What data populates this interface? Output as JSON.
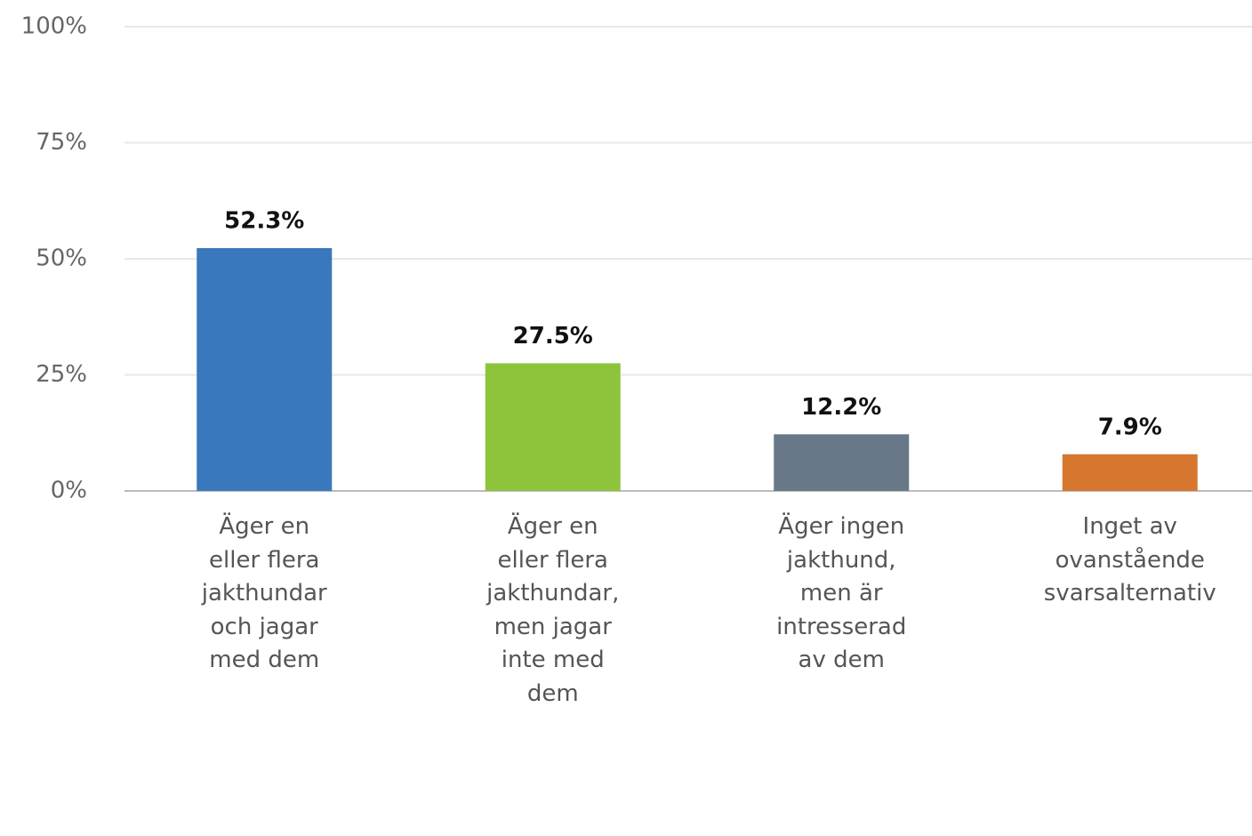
{
  "chart_data": {
    "type": "bar",
    "categories": [
      "Äger en eller flera jakthundar och jagar med dem",
      "Äger en eller flera jakthundar, men jagar inte med dem",
      "Äger ingen jakthund, men är intresserad av dem",
      "Inget av ovanstående svarsalternativ"
    ],
    "values": [
      52.3,
      27.5,
      12.2,
      7.9
    ],
    "value_labels": [
      "52.3%",
      "27.5%",
      "12.2%",
      "7.9%"
    ],
    "colors": [
      "#3a78bd",
      "#8dc43c",
      "#687888",
      "#d7772f"
    ],
    "ylim": [
      0,
      100
    ],
    "yticks": [
      {
        "value": 0,
        "label": "0%"
      },
      {
        "value": 25,
        "label": "25%"
      },
      {
        "value": 50,
        "label": "50%"
      },
      {
        "value": 75,
        "label": "75%"
      },
      {
        "value": 100,
        "label": "100%"
      }
    ],
    "grid": true
  }
}
